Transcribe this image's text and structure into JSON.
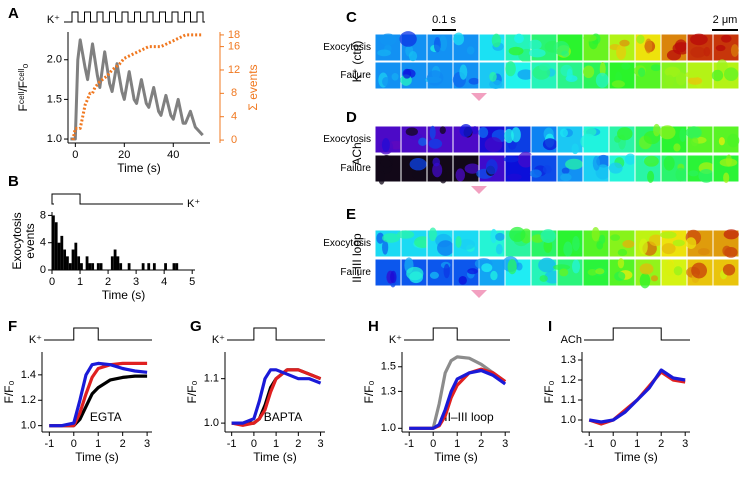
{
  "chart_data": [
    {
      "label": "A",
      "type": "line",
      "xlabel": "Time (s)",
      "ylabel": "Fᶜᵉˡˡ/Fᶜᵉˡˡ₀",
      "y2label": "Σ events",
      "stim_label": "K⁺",
      "xlim": [
        -3,
        55
      ],
      "xticks": [
        0,
        20,
        40
      ],
      "ylim": [
        0.95,
        2.35
      ],
      "yticks": [
        {
          "value": 1,
          "label": "1.0"
        },
        1.5,
        {
          "value": 2,
          "label": "2.0"
        }
      ],
      "y2lim": [
        -0.5,
        18.5
      ],
      "y2ticks": [
        0,
        4,
        8,
        12,
        16,
        18
      ],
      "series": [
        {
          "color": "#808080",
          "x": [
            -2,
            0,
            1,
            2,
            4,
            5,
            7,
            9,
            10,
            12,
            14,
            15,
            17,
            19,
            20,
            22,
            24,
            25,
            27,
            29,
            30,
            32,
            34,
            35,
            37,
            39,
            40,
            42,
            44,
            45,
            47,
            49,
            52
          ],
          "values": [
            1.0,
            1.0,
            2.0,
            2.25,
            1.9,
            1.75,
            2.2,
            1.8,
            1.65,
            2.1,
            1.7,
            1.6,
            1.95,
            1.6,
            1.5,
            1.85,
            1.5,
            1.45,
            1.75,
            1.45,
            1.4,
            1.65,
            1.35,
            1.3,
            1.55,
            1.3,
            1.25,
            1.5,
            1.2,
            1.2,
            1.35,
            1.15,
            1.05
          ]
        },
        {
          "color": "#f07820",
          "axis": "y2",
          "x": [
            -1,
            0,
            2,
            3,
            4,
            5,
            6,
            7,
            8,
            10,
            13,
            15,
            18,
            20,
            25,
            30,
            35,
            40,
            45,
            52
          ],
          "values": [
            0,
            2,
            2,
            4,
            6,
            7,
            8,
            8,
            9,
            10,
            11,
            12,
            13,
            14,
            15,
            16,
            16,
            17,
            18,
            18
          ]
        }
      ]
    },
    {
      "label": "B",
      "type": "histogram",
      "xlabel": "Time (s)",
      "ylabel": [
        "Exocytosis",
        "events"
      ],
      "stim_label": "K⁺",
      "stimulus": [
        0,
        1
      ],
      "xlim": [
        0,
        5.1
      ],
      "xticks": [
        0,
        1,
        2,
        3,
        4,
        5
      ],
      "ylim": [
        0,
        8.5
      ],
      "yticks": [
        0,
        4,
        8
      ],
      "color": "#000000",
      "bins": [
        0,
        0.1,
        0.2,
        0.3,
        0.4,
        0.5,
        0.6,
        0.7,
        0.8,
        0.9,
        1,
        1.1,
        1.2,
        1.3,
        1.4,
        1.5,
        1.6,
        1.7,
        1.8,
        1.9,
        2,
        2.1,
        2.2,
        2.3,
        2.4,
        2.5,
        2.6,
        2.7,
        2.8,
        2.9,
        3,
        3.1,
        3.2,
        3.3,
        3.4,
        3.5,
        3.6,
        3.7,
        3.8,
        3.9,
        4,
        4.1,
        4.2,
        4.3,
        4.4,
        4.5,
        4.6,
        4.7,
        4.8,
        4.9,
        5
      ],
      "counts": [
        8,
        7,
        4,
        5,
        3,
        2,
        1,
        3,
        4,
        2,
        1,
        0,
        2,
        1,
        1,
        0,
        1,
        1,
        0,
        0,
        0,
        2,
        3,
        2,
        1,
        0,
        0,
        1,
        0,
        0,
        0,
        0,
        1,
        0,
        1,
        0,
        1,
        0,
        0,
        0,
        1,
        0,
        0,
        1,
        1,
        0,
        0,
        0,
        0,
        0
      ]
    },
    {
      "label": "F",
      "type": "line",
      "xlabel": "Time (s)",
      "ylabel": "F/F₀",
      "stim_label": "K⁺",
      "stimulus": [
        0,
        1
      ],
      "annotation": "EGTA",
      "xlim": [
        -1.3,
        3.2
      ],
      "xticks": [
        -1,
        0,
        1,
        2,
        3
      ],
      "ylim": [
        0.95,
        1.58
      ],
      "yticks": [
        {
          "value": 1,
          "label": "1.0"
        },
        1.2,
        1.4
      ],
      "x": [
        -1,
        -0.5,
        0,
        0.25,
        0.5,
        0.75,
        1,
        1.5,
        2,
        2.5,
        3
      ],
      "series": [
        {
          "color": "#000000",
          "values": [
            1.0,
            1.0,
            1.0,
            1.05,
            1.15,
            1.25,
            1.3,
            1.36,
            1.38,
            1.39,
            1.39
          ]
        },
        {
          "color": "#e02020",
          "values": [
            1.0,
            1.0,
            1.0,
            1.1,
            1.25,
            1.38,
            1.45,
            1.48,
            1.49,
            1.49,
            1.49
          ]
        },
        {
          "color": "#1a1ad8",
          "values": [
            1.0,
            1.0,
            1.02,
            1.2,
            1.4,
            1.48,
            1.49,
            1.48,
            1.45,
            1.43,
            1.42
          ]
        }
      ]
    },
    {
      "label": "G",
      "type": "line",
      "xlabel": "Time (s)",
      "ylabel": "F/F₀",
      "stim_label": "K⁺",
      "stimulus": [
        0,
        1
      ],
      "annotation": "BAPTA",
      "xlim": [
        -1.3,
        3.2
      ],
      "xticks": [
        -1,
        0,
        1,
        2,
        3
      ],
      "ylim": [
        0.98,
        1.16
      ],
      "yticks": [
        {
          "value": 1,
          "label": "1.0"
        },
        1.1
      ],
      "x": [
        -1,
        -0.5,
        0,
        0.25,
        0.5,
        0.75,
        1,
        1.5,
        2,
        2.5,
        3
      ],
      "series": [
        {
          "color": "#000000",
          "values": [
            1.0,
            1.0,
            1.0,
            1.01,
            1.04,
            1.08,
            1.1,
            1.12,
            1.12,
            1.11,
            1.1
          ]
        },
        {
          "color": "#e02020",
          "values": [
            1.0,
            0.995,
            1.0,
            1.01,
            1.03,
            1.07,
            1.1,
            1.12,
            1.12,
            1.11,
            1.1
          ]
        },
        {
          "color": "#1a1ad8",
          "values": [
            1.0,
            1.0,
            1.01,
            1.05,
            1.1,
            1.12,
            1.12,
            1.11,
            1.1,
            1.1,
            1.09
          ]
        }
      ]
    },
    {
      "label": "H",
      "type": "line",
      "xlabel": "Time (s)",
      "ylabel": "F/F₀",
      "stim_label": "K⁺",
      "stimulus": [
        0,
        1
      ],
      "annotation": "II–III loop",
      "xlim": [
        -1.3,
        3.2
      ],
      "xticks": [
        -1,
        0,
        1,
        2,
        3
      ],
      "ylim": [
        0.97,
        1.62
      ],
      "yticks": [
        {
          "value": 1,
          "label": "1.0"
        },
        1.3,
        1.5
      ],
      "x": [
        -1,
        -0.5,
        0,
        0.25,
        0.5,
        0.75,
        1,
        1.5,
        2,
        2.5,
        3
      ],
      "series": [
        {
          "color": "#8c8c8c",
          "values": [
            1.0,
            1.0,
            1.0,
            1.2,
            1.45,
            1.55,
            1.58,
            1.57,
            1.52,
            1.45,
            1.38
          ]
        },
        {
          "color": "#e02020",
          "values": [
            1.0,
            1.0,
            1.0,
            1.02,
            1.1,
            1.25,
            1.35,
            1.45,
            1.48,
            1.45,
            1.38
          ]
        },
        {
          "color": "#1a1ad8",
          "values": [
            1.0,
            1.0,
            1.0,
            1.03,
            1.15,
            1.3,
            1.4,
            1.45,
            1.47,
            1.43,
            1.36
          ]
        }
      ]
    },
    {
      "label": "I",
      "type": "line",
      "xlabel": "Time (s)",
      "ylabel": "F/F₀",
      "stim_label": "ACh",
      "stimulus": [
        0,
        2
      ],
      "xlim": [
        -1.3,
        3.2
      ],
      "xticks": [
        -1,
        0,
        1,
        2,
        3
      ],
      "ylim": [
        0.94,
        1.34
      ],
      "yticks": [
        {
          "value": 1,
          "label": "1.0"
        },
        1.1,
        1.2,
        1.3
      ],
      "x": [
        -1,
        -0.5,
        0,
        0.5,
        1,
        1.5,
        2,
        2.5,
        3
      ],
      "series": [
        {
          "color": "#e02020",
          "values": [
            1.0,
            0.98,
            1.0,
            1.05,
            1.1,
            1.17,
            1.24,
            1.2,
            1.19
          ]
        },
        {
          "color": "#1a1ad8",
          "values": [
            1.0,
            0.99,
            1.0,
            1.04,
            1.1,
            1.16,
            1.25,
            1.21,
            1.2
          ]
        }
      ]
    }
  ],
  "image_panels": [
    {
      "label": "C",
      "condition": "K⁺ (ctrl)",
      "rows": [
        "Exocytosis",
        "Failure"
      ],
      "time_scale": "0.1 s",
      "space_scale": "2 μm"
    },
    {
      "label": "D",
      "condition": "ACh",
      "rows": [
        "Exocytosis",
        "Failure"
      ]
    },
    {
      "label": "E",
      "condition": "II–III loop",
      "rows": [
        "Exocytosis",
        "Failure"
      ]
    }
  ]
}
